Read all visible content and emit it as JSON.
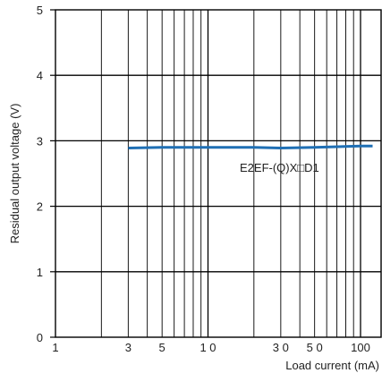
{
  "chart_data": {
    "type": "line",
    "xlabel": "Load current (mA)",
    "ylabel": "Residual output voltage (V)",
    "x_scale": "log",
    "xlim": [
      1,
      100
    ],
    "ylim": [
      0,
      5
    ],
    "x_tick_labels": [
      {
        "value": 1,
        "label": "1"
      },
      {
        "value": 3,
        "label": "3"
      },
      {
        "value": 5,
        "label": "5"
      },
      {
        "value": 10,
        "label": "1 0"
      },
      {
        "value": 30,
        "label": "3 0"
      },
      {
        "value": 50,
        "label": "5 0"
      },
      {
        "value": 100,
        "label": "100"
      }
    ],
    "y_ticks": [
      0,
      1,
      2,
      3,
      4,
      5
    ],
    "grid": true,
    "series": [
      {
        "name": "E2EF-(Q)X□D1",
        "color": "#1f6fb4",
        "x": [
          3,
          5,
          10,
          20,
          30,
          50,
          100,
          120
        ],
        "y": [
          2.89,
          2.9,
          2.9,
          2.9,
          2.89,
          2.9,
          2.92,
          2.92
        ]
      }
    ]
  }
}
